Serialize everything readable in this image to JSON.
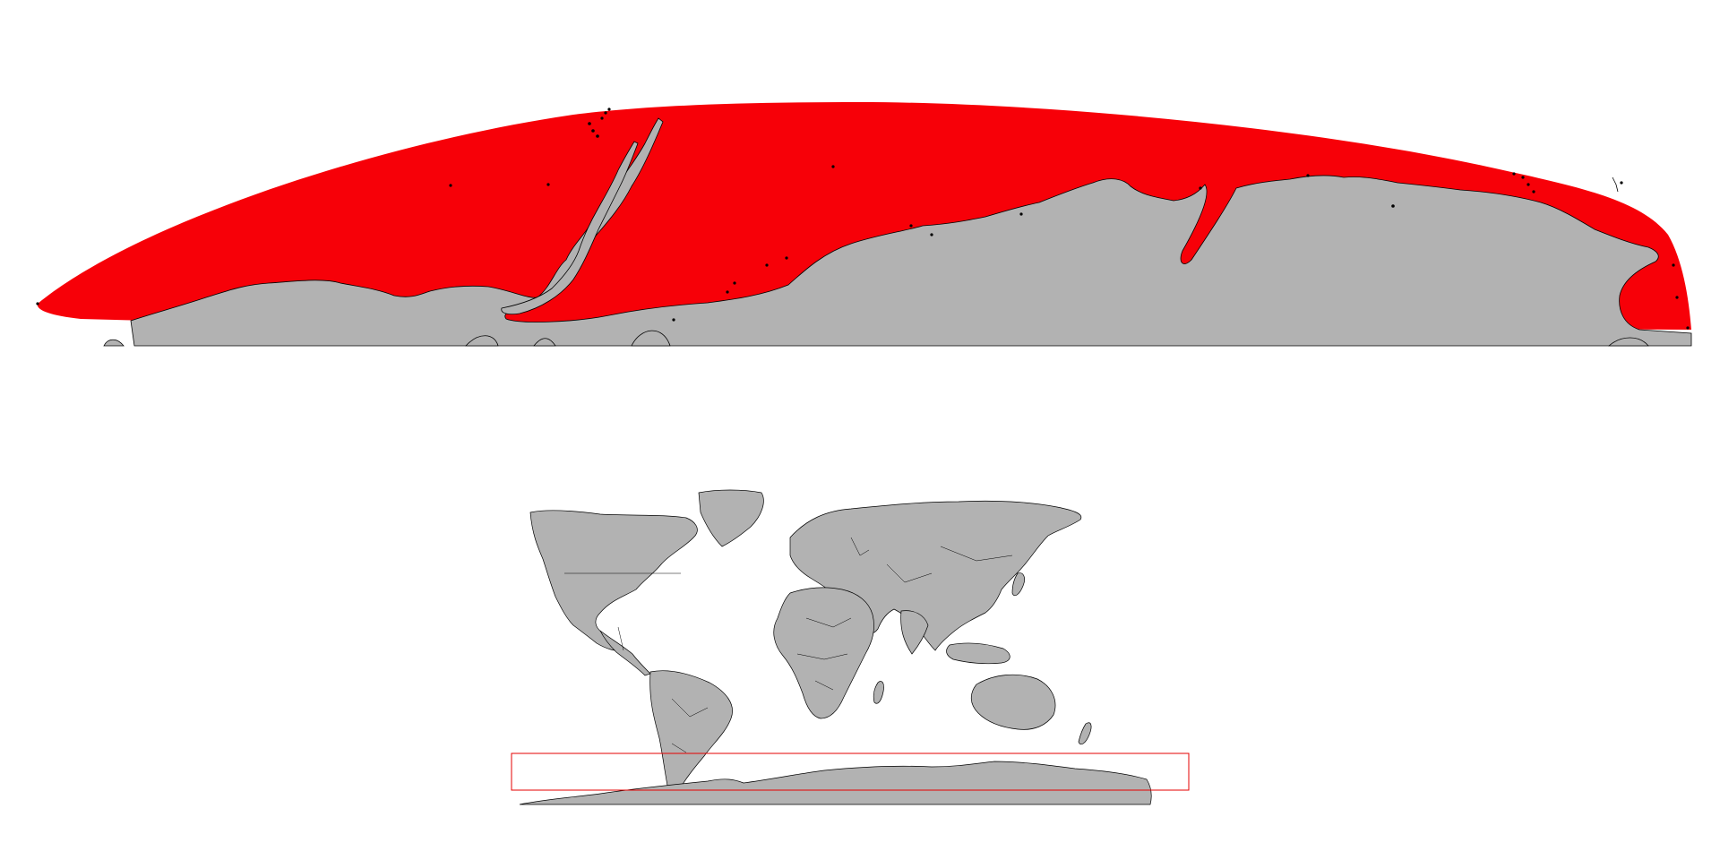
{
  "main_map": {
    "highlight_color": "#f70008",
    "land_color": "#b2b2b2",
    "outline_color": "#000000",
    "background_color": "#ffffff"
  },
  "overview_map": {
    "land_color": "#b2b2b2",
    "border_color": "#000000",
    "inset_box_color": "#e60000"
  }
}
